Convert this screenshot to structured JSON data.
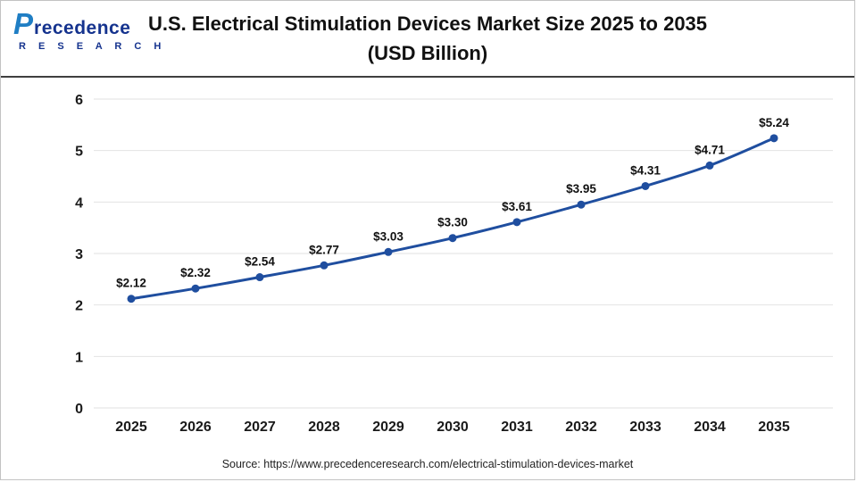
{
  "header": {
    "logo": {
      "p_glyph": "P",
      "line1": "recedence",
      "line2": "R E S E A R C H"
    },
    "title_line1": "U.S. Electrical Stimulation Devices Market Size 2025 to 2035",
    "title_line2": "(USD Billion)"
  },
  "chart_data": {
    "type": "line",
    "title": "U.S. Electrical Stimulation Devices Market Size 2025 to 2035 (USD Billion)",
    "categories": [
      "2025",
      "2026",
      "2027",
      "2028",
      "2029",
      "2030",
      "2031",
      "2032",
      "2033",
      "2034",
      "2035"
    ],
    "values": [
      2.12,
      2.32,
      2.54,
      2.77,
      3.03,
      3.3,
      3.61,
      3.95,
      4.31,
      4.71,
      5.24
    ],
    "value_labels": [
      "$2.12",
      "$2.32",
      "$2.54",
      "$2.77",
      "$3.03",
      "$3.30",
      "$3.61",
      "$3.95",
      "$4.31",
      "$4.71",
      "$5.24"
    ],
    "xlabel": "",
    "ylabel": "",
    "ylim": [
      0,
      6
    ],
    "yticks": [
      0,
      1,
      2,
      3,
      4,
      5,
      6
    ],
    "grid": true,
    "legend": "none",
    "line_color": "#1f4e9f",
    "marker_color": "#1f4e9f",
    "grid_color": "#e2e2e2"
  },
  "footer": {
    "source_text": "Source: https://www.precedenceresearch.com/electrical-stimulation-devices-market"
  }
}
